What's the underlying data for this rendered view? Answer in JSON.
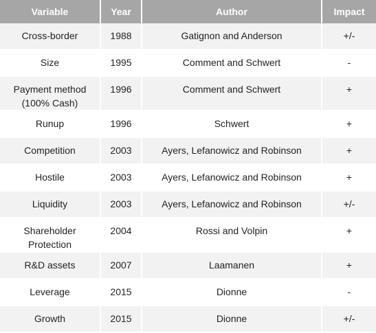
{
  "table": {
    "headers": [
      "Variable",
      "Year",
      "Author",
      "Impact"
    ],
    "rows": [
      {
        "variable": "Cross-border",
        "year": "1988",
        "author": "Gatignon and Anderson",
        "impact": "+/-"
      },
      {
        "variable": "Size",
        "year": "1995",
        "author": "Comment and Schwert",
        "impact": "-"
      },
      {
        "variable": "Payment method (100% Cash)",
        "year": "1996",
        "author": "Comment and Schwert",
        "impact": "+"
      },
      {
        "variable": "Runup",
        "year": "1996",
        "author": "Schwert",
        "impact": "+"
      },
      {
        "variable": "Competition",
        "year": "2003",
        "author": "Ayers, Lefanowicz and Robinson",
        "impact": "+"
      },
      {
        "variable": "Hostile",
        "year": "2003",
        "author": "Ayers, Lefanowicz and Robinson",
        "impact": "+"
      },
      {
        "variable": "Liquidity",
        "year": "2003",
        "author": "Ayers, Lefanowicz and Robinson",
        "impact": "+/-"
      },
      {
        "variable": "Shareholder Protection",
        "year": "2004",
        "author": "Rossi and Volpin",
        "impact": "+"
      },
      {
        "variable": "R&D assets",
        "year": "2007",
        "author": "Laamanen",
        "impact": "+"
      },
      {
        "variable": "Leverage",
        "year": "2015",
        "author": "Dionne",
        "impact": "-"
      },
      {
        "variable": "Growth",
        "year": "2015",
        "author": "Dionne",
        "impact": "+/-"
      }
    ]
  },
  "colors": {
    "header_bg": "#a6a6a6",
    "header_text": "#ffffff",
    "stripe_bg": "#f2f2f2",
    "plain_bg": "#ffffff"
  }
}
